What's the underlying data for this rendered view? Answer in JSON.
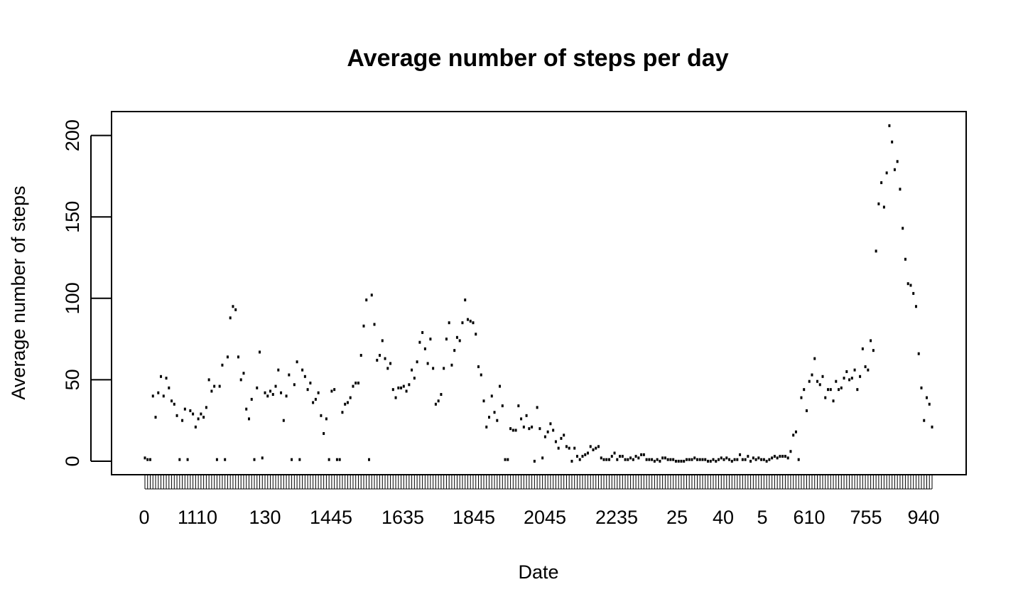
{
  "chart_data": {
    "type": "scatter",
    "title": "Average number of steps per day",
    "xlabel": "Date",
    "ylabel": "Average number of steps",
    "ylim": [
      -8,
      214
    ],
    "yticks": [
      0,
      50,
      100,
      150,
      200
    ],
    "x_tick_labels": [
      "0",
      "1110",
      "130",
      "1445",
      "1635",
      "1845",
      "2045",
      "2235",
      "25",
      "40",
      "5",
      "610",
      "755",
      "940"
    ],
    "grid": false,
    "legend": "none",
    "marker_color": "#000000",
    "values": [
      2,
      1,
      1,
      40,
      27,
      42,
      52,
      40,
      51,
      45,
      37,
      35,
      28,
      1,
      25,
      32,
      1,
      31,
      29,
      21,
      26,
      29,
      27,
      33,
      50,
      43,
      46,
      1,
      46,
      59,
      1,
      64,
      88,
      95,
      93,
      64,
      50,
      54,
      32,
      26,
      38,
      1,
      45,
      67,
      2,
      42,
      40,
      43,
      41,
      46,
      56,
      42,
      25,
      40,
      53,
      1,
      47,
      61,
      1,
      56,
      52,
      44,
      48,
      36,
      38,
      42,
      28,
      17,
      26,
      1,
      43,
      44,
      1,
      1,
      30,
      35,
      36,
      39,
      46,
      48,
      48,
      65,
      83,
      99,
      1,
      102,
      84,
      62,
      65,
      74,
      63,
      57,
      60,
      44,
      39,
      45,
      45,
      46,
      43,
      47,
      56,
      51,
      61,
      73,
      79,
      69,
      60,
      75,
      57,
      35,
      37,
      41,
      57,
      75,
      85,
      59,
      68,
      76,
      74,
      85,
      99,
      87,
      86,
      85,
      78,
      58,
      53,
      37,
      21,
      27,
      40,
      30,
      25,
      46,
      34,
      1,
      1,
      20,
      19,
      19,
      34,
      26,
      21,
      28,
      20,
      21,
      0,
      33,
      20,
      2,
      15,
      18,
      23,
      19,
      12,
      8,
      14,
      16,
      9,
      8,
      0,
      8,
      3,
      1,
      3,
      4,
      5,
      9,
      7,
      8,
      9,
      2,
      1,
      1,
      1,
      3,
      5,
      1,
      3,
      3,
      1,
      1,
      2,
      1,
      3,
      2,
      4,
      4,
      1,
      1,
      1,
      0,
      1,
      0,
      2,
      2,
      1,
      1,
      1,
      0,
      0,
      0,
      0,
      1,
      1,
      1,
      2,
      1,
      1,
      1,
      1,
      0,
      0,
      1,
      0,
      1,
      2,
      1,
      2,
      1,
      0,
      1,
      1,
      4,
      1,
      1,
      3,
      0,
      2,
      1,
      2,
      1,
      1,
      0,
      1,
      2,
      3,
      2,
      3,
      3,
      3,
      2,
      6,
      16,
      18,
      1,
      39,
      44,
      31,
      49,
      53,
      63,
      49,
      47,
      52,
      39,
      44,
      44,
      37,
      49,
      44,
      45,
      51,
      55,
      50,
      51,
      56,
      44,
      52,
      69,
      58,
      56,
      74,
      68,
      129,
      158,
      171,
      156,
      177,
      206,
      196,
      179,
      184,
      167,
      143,
      124,
      109,
      108,
      103,
      95,
      66,
      45,
      25,
      39,
      35,
      21
    ]
  }
}
